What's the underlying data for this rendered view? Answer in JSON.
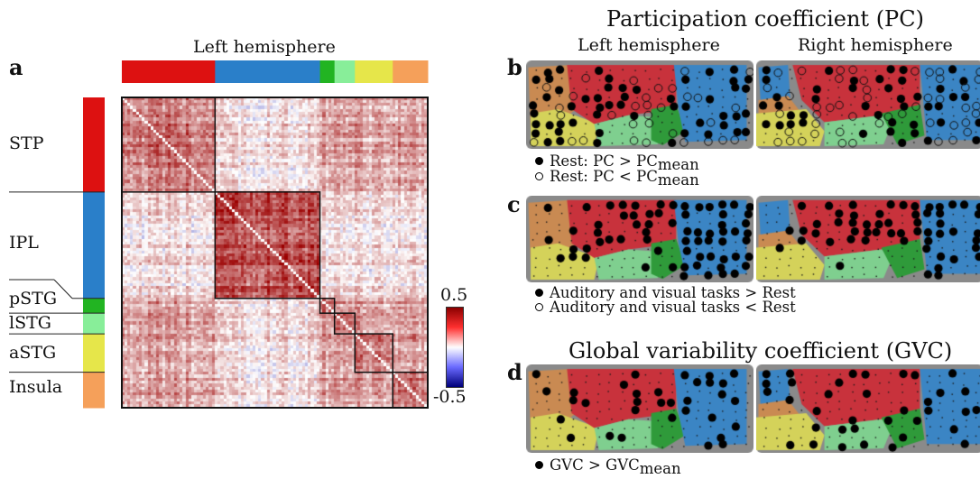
{
  "panel_a": {
    "letter": "a",
    "top_label": "Left hemisphere",
    "regions": [
      {
        "name": "STP",
        "color": "#dd1111",
        "size": 32
      },
      {
        "name": "IPL",
        "color": "#2a7fc9",
        "size": 36
      },
      {
        "name": "pSTG",
        "color": "#22b422",
        "size": 5
      },
      {
        "name": "lSTG",
        "color": "#88ee99",
        "size": 7
      },
      {
        "name": "aSTG",
        "color": "#e6e64a",
        "size": 13
      },
      {
        "name": "Insula",
        "color": "#f5a05a",
        "size": 12
      }
    ],
    "colorbar": {
      "max": "0.5",
      "min": "-0.5"
    }
  },
  "panel_right": {
    "pc_title": "Participation coefficient (PC)",
    "left_hemisphere": "Left hemisphere",
    "right_hemisphere": "Right hemisphere",
    "gvc_title": "Global variability coefficient (GVC)",
    "b": {
      "letter": "b",
      "legend1_prefix": "Rest: PC > PC",
      "legend1_sub": "mean",
      "legend2_prefix": "Rest: PC < PC",
      "legend2_sub": "mean"
    },
    "c": {
      "letter": "c",
      "legend1": "Auditory and visual tasks > Rest",
      "legend2": "Auditory and visual tasks < Rest"
    },
    "d": {
      "letter": "d",
      "legend1_prefix": "GVC > GVC",
      "legend1_sub": "mean"
    }
  },
  "brain_colors": {
    "background": "#8a8a8a",
    "red": "#c8323c",
    "blue": "#3b85c4",
    "orange": "#c98a52",
    "yellow": "#d4d25a",
    "lightgreen": "#7fcf8f",
    "green": "#2f9a3a"
  }
}
